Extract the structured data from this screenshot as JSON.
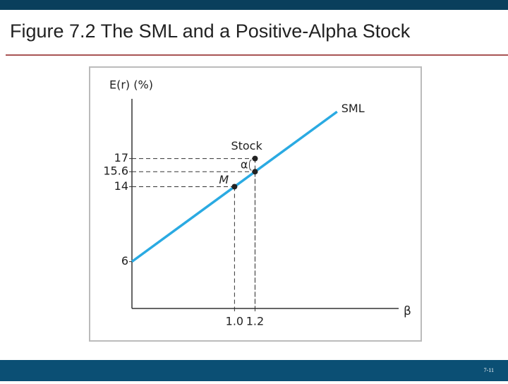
{
  "header": {
    "title": "Figure 7.2 The SML and a Positive-Alpha Stock"
  },
  "chart_data": {
    "type": "line",
    "y_label": "E(r) (%)",
    "x_label": "β",
    "series": [
      {
        "name": "SML",
        "color": "#2aaae2",
        "x": [
          0,
          1,
          2
        ],
        "values": [
          6,
          14,
          22
        ]
      }
    ],
    "points": [
      {
        "label": "M",
        "x": 1,
        "y": 14
      },
      {
        "label": "Stock",
        "x": 1.2,
        "y": 17
      },
      {
        "x": 1.2,
        "y": 15.6
      }
    ],
    "annotation": "α",
    "xlim": [
      0,
      2.6
    ],
    "ylim": [
      1,
      23
    ],
    "xticks": [
      {
        "value": 1,
        "label": "1.0"
      },
      1.2
    ],
    "yticks": [
      6,
      14,
      15.6,
      17
    ]
  },
  "footer": {
    "page": "7-11"
  }
}
